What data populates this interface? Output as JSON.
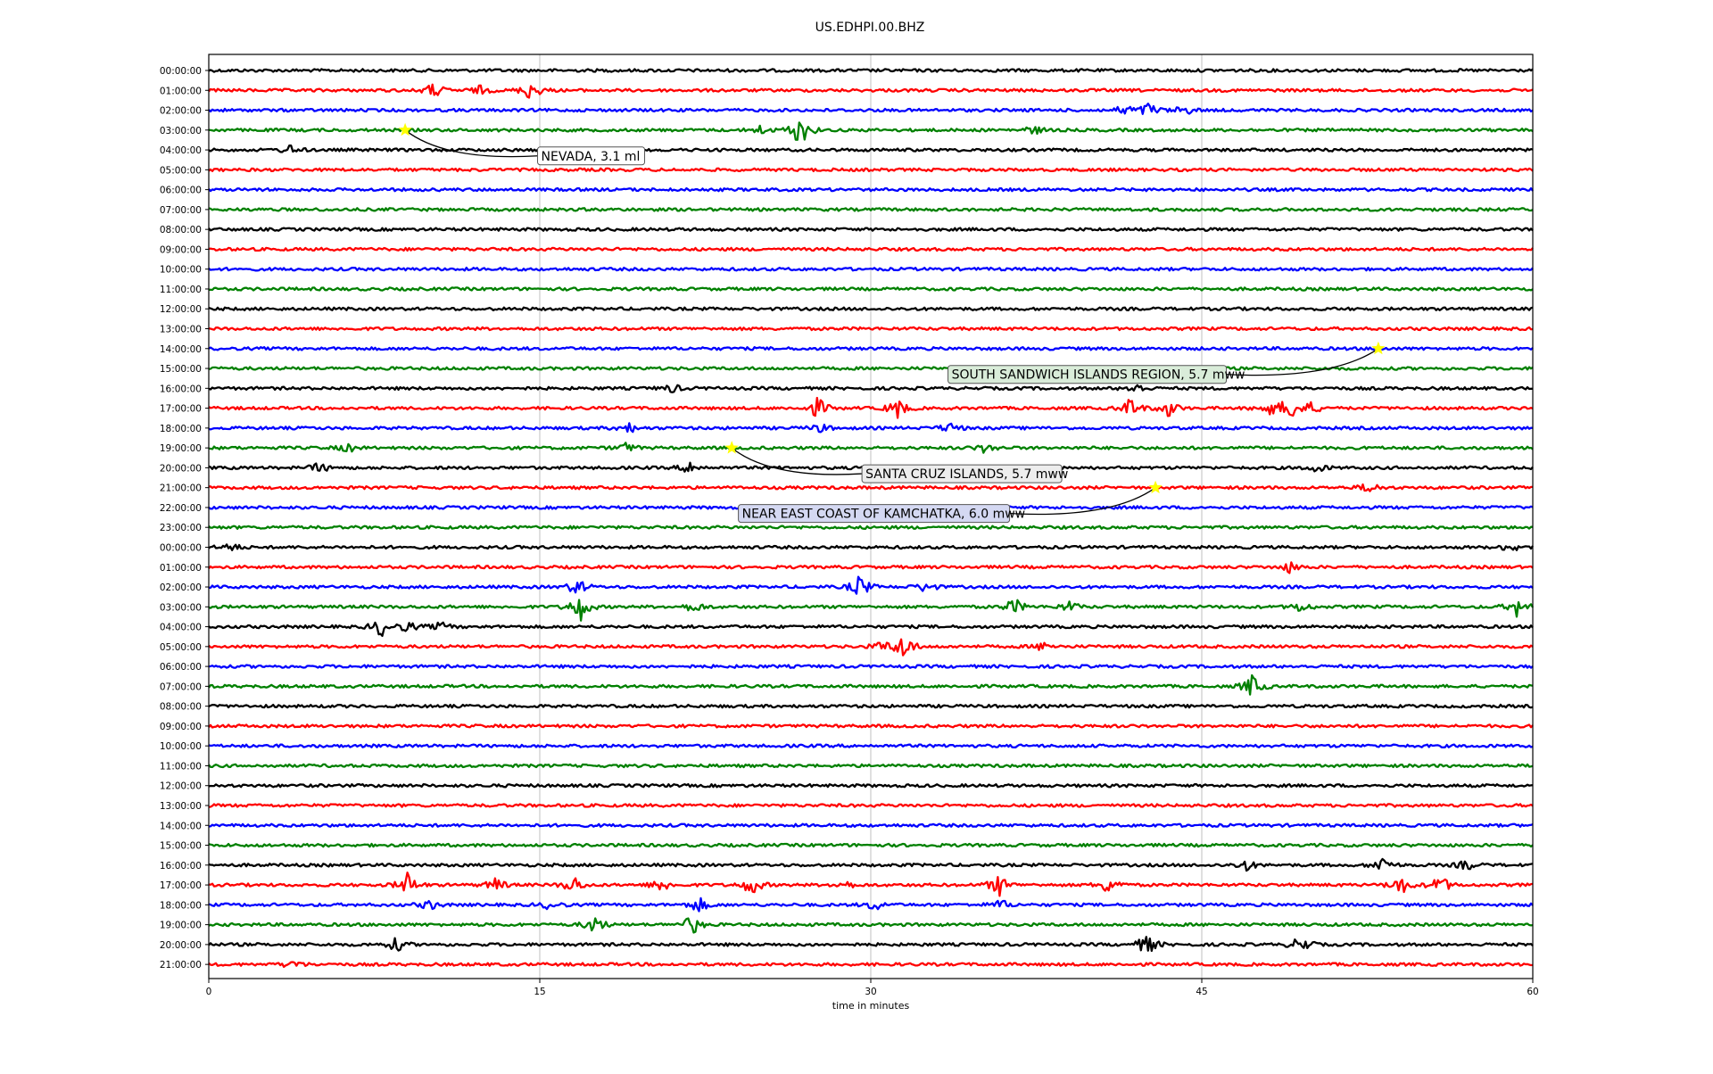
{
  "chart_data": {
    "type": "line",
    "title": "US.EDHPI.00.BHZ",
    "xlabel": "time in minutes",
    "ylabel": "",
    "xlim": [
      0,
      60
    ],
    "xticks": [
      0,
      15,
      30,
      45,
      60
    ],
    "grid": "vertical",
    "trace_colors": [
      "#000000",
      "#ff0000",
      "#0000ff",
      "#008000"
    ],
    "row_labels": [
      "00:00:00",
      "01:00:00",
      "02:00:00",
      "03:00:00",
      "04:00:00",
      "05:00:00",
      "06:00:00",
      "07:00:00",
      "08:00:00",
      "09:00:00",
      "10:00:00",
      "11:00:00",
      "12:00:00",
      "13:00:00",
      "14:00:00",
      "15:00:00",
      "16:00:00",
      "17:00:00",
      "18:00:00",
      "19:00:00",
      "20:00:00",
      "21:00:00",
      "22:00:00",
      "23:00:00",
      "00:00:00",
      "01:00:00",
      "02:00:00",
      "03:00:00",
      "04:00:00",
      "05:00:00",
      "06:00:00",
      "07:00:00",
      "08:00:00",
      "09:00:00",
      "10:00:00",
      "11:00:00",
      "12:00:00",
      "13:00:00",
      "14:00:00",
      "15:00:00",
      "16:00:00",
      "17:00:00",
      "18:00:00",
      "19:00:00",
      "20:00:00",
      "21:00:00"
    ],
    "bursts": [
      [
        1,
        10.2,
        2.2
      ],
      [
        1,
        14.6,
        3
      ],
      [
        1,
        12.3,
        1.2
      ],
      [
        2,
        41.5,
        1.5
      ],
      [
        2,
        42.6,
        2.2
      ],
      [
        2,
        44.2,
        1.4
      ],
      [
        3,
        26.8,
        5
      ],
      [
        3,
        25,
        1.2
      ],
      [
        3,
        37.4,
        1.2
      ],
      [
        4,
        3.7,
        1.3
      ],
      [
        16,
        42,
        1.6
      ],
      [
        16,
        21,
        1.2
      ],
      [
        17,
        27.6,
        3
      ],
      [
        17,
        31.2,
        3
      ],
      [
        17,
        41.8,
        3
      ],
      [
        17,
        43.5,
        2.5
      ],
      [
        17,
        48,
        2.2
      ],
      [
        17,
        49,
        4
      ],
      [
        17,
        50,
        1.6
      ],
      [
        18,
        19,
        1.5
      ],
      [
        18,
        33.6,
        1.6
      ],
      [
        18,
        27.7,
        1.2
      ],
      [
        19,
        6.3,
        1.2
      ],
      [
        19,
        18.9,
        1.4
      ],
      [
        19,
        35.2,
        1.4
      ],
      [
        20,
        5,
        1.5
      ],
      [
        20,
        21.8,
        1.7
      ],
      [
        20,
        50.2,
        1.3
      ],
      [
        21,
        52.6,
        1.7
      ],
      [
        24,
        1,
        1.2
      ],
      [
        24,
        59,
        1.4
      ],
      [
        25,
        49,
        1.6
      ],
      [
        26,
        16.7,
        2.5
      ],
      [
        26,
        29.5,
        3.5
      ],
      [
        26,
        32.5,
        1.6
      ],
      [
        27,
        16.8,
        4.5
      ],
      [
        27,
        22,
        1.6
      ],
      [
        27,
        36.5,
        2.5
      ],
      [
        27,
        39,
        1.5
      ],
      [
        27,
        49.5,
        1.5
      ],
      [
        27,
        59.3,
        2.8
      ],
      [
        28,
        7.8,
        2.8
      ],
      [
        28,
        9,
        1.5
      ],
      [
        28,
        10.5,
        1.3
      ],
      [
        29,
        31.5,
        4
      ],
      [
        29,
        30.5,
        1.4
      ],
      [
        29,
        37.8,
        1.2
      ],
      [
        31,
        47.3,
        3.5
      ],
      [
        40,
        47,
        1.6
      ],
      [
        40,
        53.2,
        2.5
      ],
      [
        40,
        57,
        1.5
      ],
      [
        41,
        9,
        3.5
      ],
      [
        41,
        13,
        2
      ],
      [
        41,
        16.5,
        2.8
      ],
      [
        41,
        20.5,
        2.2
      ],
      [
        41,
        24.6,
        3
      ],
      [
        41,
        28.8,
        1.3
      ],
      [
        41,
        35.8,
        3.2
      ],
      [
        41,
        40.8,
        2.8
      ],
      [
        41,
        54,
        3
      ],
      [
        41,
        55.8,
        3
      ],
      [
        42,
        10,
        1.5
      ],
      [
        42,
        15.5,
        1.5
      ],
      [
        42,
        22.2,
        2.2
      ],
      [
        42,
        30.2,
        1.6
      ],
      [
        42,
        35.9,
        1.4
      ],
      [
        43,
        17.5,
        2.8
      ],
      [
        43,
        21.9,
        3
      ],
      [
        44,
        8.5,
        2
      ],
      [
        44,
        42.5,
        3.2
      ],
      [
        44,
        49.5,
        2.8
      ],
      [
        45,
        3.8,
        1.2
      ]
    ],
    "events": [
      {
        "label": "NEVADA, 3.1 ml",
        "row": 3,
        "minute": 8.9,
        "label_row": 4.3,
        "label_minute": 14.9,
        "box_color": "#ffffff"
      },
      {
        "label": "SOUTH SANDWICH ISLANDS REGION, 5.7 mww",
        "row": 14,
        "minute": 53,
        "label_row": 15.3,
        "label_minute": 33.5,
        "box_color": "#d9ecd9"
      },
      {
        "label": "SANTA CRUZ ISLANDS, 5.7 mww",
        "row": 19,
        "minute": 23.7,
        "label_row": 20.3,
        "label_minute": 29.6,
        "box_color": "#ededed"
      },
      {
        "label": "NEAR EAST COAST OF KAMCHATKA, 6.0 mww",
        "row": 21,
        "minute": 42.9,
        "label_row": 22.3,
        "label_minute": 24,
        "box_color": "#d4d8f2"
      }
    ]
  }
}
